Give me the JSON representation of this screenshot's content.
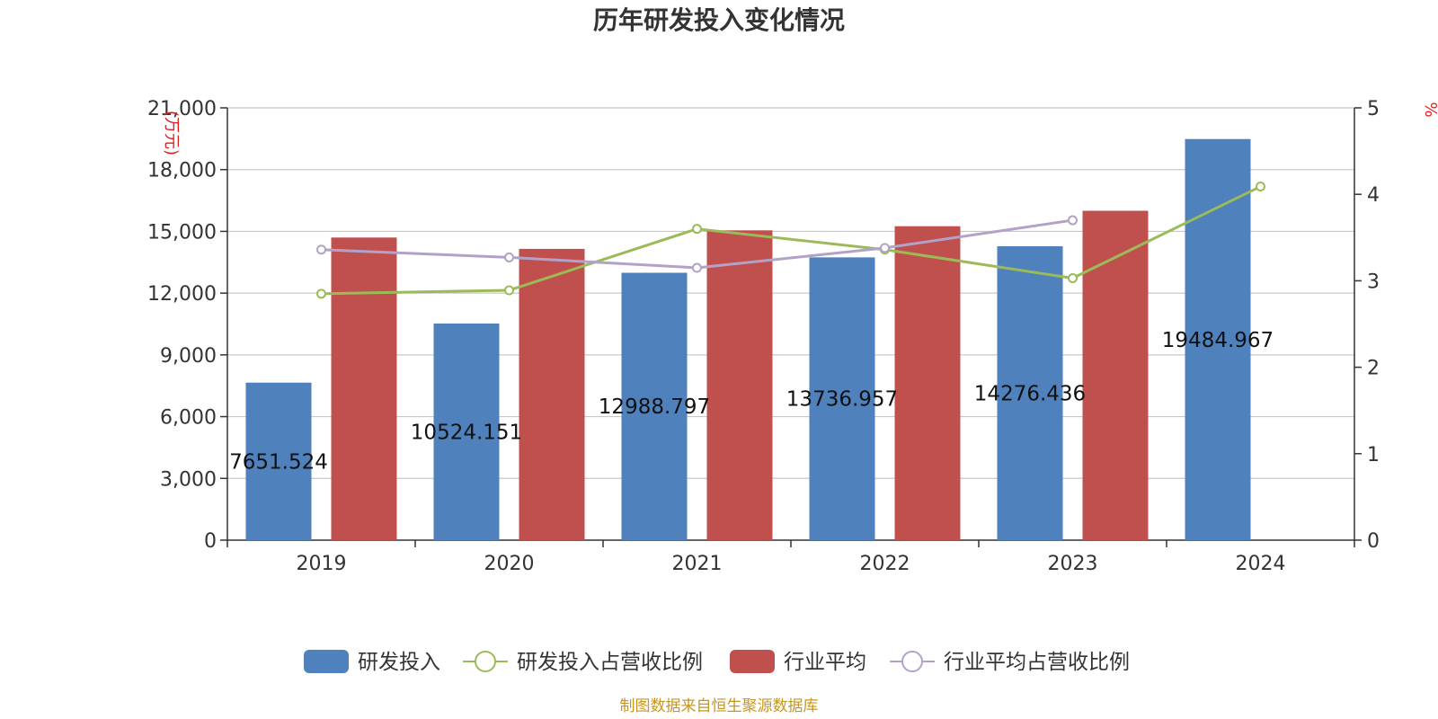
{
  "chart_data": {
    "type": "bar",
    "title": "历年研发投入变化情况",
    "categories": [
      "2019",
      "2020",
      "2021",
      "2022",
      "2023",
      "2024"
    ],
    "left_axis": {
      "unit": "(万元)",
      "ylim": [
        0,
        21000
      ],
      "ticks": [
        0,
        3000,
        6000,
        9000,
        12000,
        15000,
        18000,
        21000
      ],
      "tick_labels": [
        "0",
        "3,000",
        "6,000",
        "9,000",
        "12,000",
        "15,000",
        "18,000",
        "21,000"
      ]
    },
    "right_axis": {
      "unit": "%",
      "ylim": [
        0,
        5
      ],
      "ticks": [
        0,
        1,
        2,
        3,
        4,
        5
      ],
      "tick_labels": [
        "0",
        "1",
        "2",
        "3",
        "4",
        "5"
      ]
    },
    "grid": true,
    "legend_position": "bottom",
    "series": [
      {
        "name": "研发投入",
        "kind": "bar",
        "axis": "left",
        "color": "#4f81bd",
        "values": [
          7651.524,
          10524.151,
          12988.797,
          13736.957,
          14276.436,
          19484.967
        ],
        "data_labels": [
          "7651.524",
          "10524.151",
          "12988.797",
          "13736.957",
          "14276.436",
          "19484.967"
        ]
      },
      {
        "name": "研发投入占营收比例",
        "kind": "line",
        "axis": "right",
        "color": "#9bbb59",
        "values": [
          2.85,
          2.89,
          3.6,
          3.36,
          3.03,
          4.09
        ]
      },
      {
        "name": "行业平均",
        "kind": "bar",
        "axis": "left",
        "color": "#c0504d",
        "values": [
          14700,
          14150,
          15050,
          15250,
          16000,
          null
        ]
      },
      {
        "name": "行业平均占营收比例",
        "kind": "line",
        "axis": "right",
        "color": "#b3a2c7",
        "values": [
          3.36,
          3.27,
          3.15,
          3.38,
          3.7,
          null
        ]
      }
    ],
    "source": "制图数据来自恒生聚源数据库"
  }
}
